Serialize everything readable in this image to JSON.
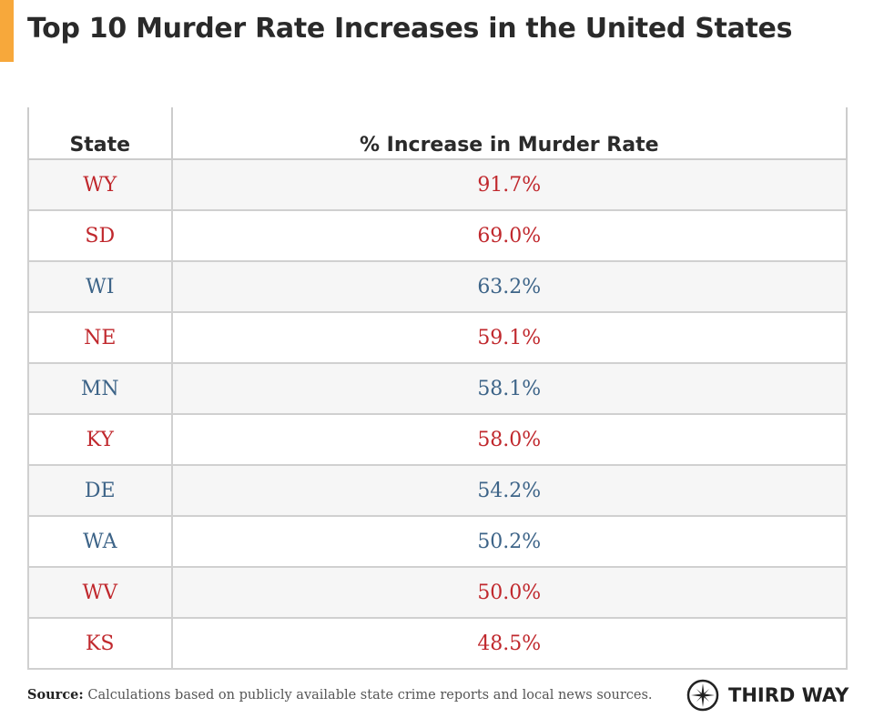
{
  "title": "Top 10 Murder Rate Increases in the United States",
  "colors": {
    "accent": "#f7a83b",
    "red": "#c0282d",
    "blue": "#3d6488"
  },
  "table": {
    "headers": [
      "State",
      "% Increase in Murder Rate"
    ],
    "rows": [
      {
        "state": "WY",
        "value": "91.7%",
        "color": "#c0282d"
      },
      {
        "state": "SD",
        "value": "69.0%",
        "color": "#c0282d"
      },
      {
        "state": "WI",
        "value": "63.2%",
        "color": "#3d6488"
      },
      {
        "state": "NE",
        "value": "59.1%",
        "color": "#c0282d"
      },
      {
        "state": "MN",
        "value": "58.1%",
        "color": "#3d6488"
      },
      {
        "state": "KY",
        "value": "58.0%",
        "color": "#c0282d"
      },
      {
        "state": "DE",
        "value": "54.2%",
        "color": "#3d6488"
      },
      {
        "state": "WA",
        "value": "50.2%",
        "color": "#3d6488"
      },
      {
        "state": "WV",
        "value": "50.0%",
        "color": "#c0282d"
      },
      {
        "state": "KS",
        "value": "48.5%",
        "color": "#c0282d"
      }
    ]
  },
  "source": {
    "label": "Source:",
    "text": " Calculations based on publicly available state crime reports and local news sources."
  },
  "logo": {
    "text": "THIRD WAY",
    "icon": "compass-icon"
  }
}
